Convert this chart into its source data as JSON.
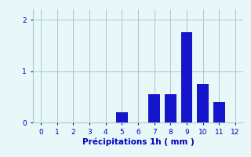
{
  "categories": [
    0,
    1,
    2,
    3,
    4,
    5,
    6,
    7,
    8,
    9,
    10,
    11,
    12
  ],
  "values": [
    0,
    0,
    0,
    0,
    0,
    0.2,
    0,
    0.55,
    0.55,
    1.75,
    0.75,
    0.4,
    0
  ],
  "bar_color": "#1515cc",
  "background_color": "#e8f8f8",
  "grid_color": "#aac8c8",
  "xlabel": "Précipitations 1h ( mm )",
  "xlim": [
    -0.5,
    12.5
  ],
  "ylim": [
    0,
    2.2
  ],
  "yticks": [
    0,
    1,
    2
  ],
  "xticks": [
    0,
    1,
    2,
    3,
    4,
    5,
    6,
    7,
    8,
    9,
    10,
    11,
    12
  ],
  "label_color": "#0000bb",
  "tick_fontsize": 6.5,
  "xlabel_fontsize": 7.5,
  "bar_width": 0.7
}
